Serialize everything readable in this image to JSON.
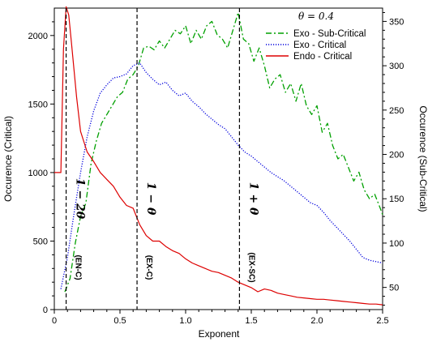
{
  "chart_data": {
    "type": "line",
    "xlabel": "Exponent",
    "ylabel_left": "Occurence (Critical)",
    "ylabel_right": "Occurence (Sub-Critical)",
    "xlim": [
      0,
      2.5
    ],
    "ylim_left": [
      0,
      2200
    ],
    "ylim_right": [
      25,
      365
    ],
    "x_ticks": [
      0,
      0.5,
      1.0,
      1.5,
      2.0,
      2.5
    ],
    "x_tick_labels": [
      "0",
      "0.5",
      "1.0",
      "1.5",
      "2.0",
      "2.5"
    ],
    "y_left_ticks": [
      0,
      500,
      1000,
      1500,
      2000
    ],
    "y_left_tick_labels": [
      "0",
      "500",
      "1000",
      "1500",
      "2000"
    ],
    "y_right_ticks": [
      50,
      100,
      150,
      200,
      250,
      300,
      350
    ],
    "y_right_tick_labels": [
      "50",
      "100",
      "150",
      "200",
      "250",
      "300",
      "350"
    ],
    "legend_title": "θ = 0.4",
    "legend_position": "top-right",
    "grid": false,
    "series": [
      {
        "name": "Exo - Sub-Critical",
        "axis": "right",
        "color": "#00a000",
        "dash": "dashdot",
        "x": [
          0.08,
          0.12,
          0.16,
          0.2,
          0.24,
          0.28,
          0.32,
          0.36,
          0.4,
          0.44,
          0.48,
          0.52,
          0.56,
          0.6,
          0.64,
          0.68,
          0.72,
          0.76,
          0.8,
          0.84,
          0.88,
          0.92,
          0.96,
          1.0,
          1.04,
          1.08,
          1.12,
          1.16,
          1.2,
          1.24,
          1.28,
          1.32,
          1.36,
          1.4,
          1.44,
          1.48,
          1.52,
          1.56,
          1.6,
          1.64,
          1.68,
          1.72,
          1.76,
          1.8,
          1.84,
          1.88,
          1.92,
          1.96,
          2.0,
          2.04,
          2.08,
          2.12,
          2.16,
          2.2,
          2.24,
          2.28,
          2.32,
          2.36,
          2.4,
          2.44,
          2.48,
          2.5
        ],
        "y": [
          45,
          60,
          100,
          130,
          145,
          190,
          215,
          235,
          245,
          255,
          265,
          270,
          285,
          290,
          300,
          320,
          322,
          318,
          328,
          320,
          330,
          340,
          336,
          345,
          325,
          340,
          330,
          345,
          350,
          335,
          330,
          320,
          340,
          360,
          330,
          325,
          305,
          320,
          300,
          275,
          285,
          290,
          270,
          280,
          260,
          280,
          255,
          245,
          255,
          225,
          235,
          210,
          195,
          200,
          185,
          170,
          180,
          160,
          150,
          155,
          140,
          132
        ]
      },
      {
        "name": "Exo - Critical",
        "axis": "left",
        "color": "#0000dd",
        "dash": "dotted",
        "x": [
          0.05,
          0.1,
          0.15,
          0.2,
          0.25,
          0.3,
          0.35,
          0.4,
          0.45,
          0.5,
          0.55,
          0.6,
          0.65,
          0.7,
          0.75,
          0.8,
          0.85,
          0.9,
          0.95,
          1.0,
          1.05,
          1.1,
          1.15,
          1.2,
          1.25,
          1.3,
          1.35,
          1.4,
          1.45,
          1.5,
          1.55,
          1.6,
          1.65,
          1.7,
          1.75,
          1.8,
          1.85,
          1.9,
          1.95,
          2.0,
          2.05,
          2.1,
          2.15,
          2.2,
          2.25,
          2.3,
          2.35,
          2.4,
          2.45,
          2.5
        ],
        "y": [
          150,
          380,
          700,
          1000,
          1260,
          1450,
          1580,
          1640,
          1690,
          1700,
          1720,
          1780,
          1800,
          1730,
          1680,
          1640,
          1660,
          1600,
          1560,
          1580,
          1520,
          1480,
          1430,
          1390,
          1350,
          1320,
          1260,
          1200,
          1150,
          1120,
          1080,
          1040,
          1000,
          970,
          940,
          900,
          860,
          820,
          780,
          760,
          710,
          650,
          600,
          550,
          500,
          440,
          380,
          360,
          350,
          340
        ]
      },
      {
        "name": "Endo - Critical",
        "axis": "left",
        "color": "#dd0000",
        "dash": "solid",
        "x": [
          0.0,
          0.05,
          0.07,
          0.09,
          0.11,
          0.13,
          0.15,
          0.17,
          0.2,
          0.25,
          0.3,
          0.35,
          0.4,
          0.45,
          0.5,
          0.55,
          0.6,
          0.65,
          0.7,
          0.75,
          0.8,
          0.85,
          0.9,
          0.95,
          1.0,
          1.05,
          1.1,
          1.15,
          1.2,
          1.25,
          1.3,
          1.35,
          1.4,
          1.45,
          1.5,
          1.55,
          1.6,
          1.65,
          1.7,
          1.75,
          1.8,
          1.85,
          1.9,
          1.95,
          2.0,
          2.05,
          2.1,
          2.15,
          2.2,
          2.25,
          2.3,
          2.35,
          2.4,
          2.45,
          2.5
        ],
        "y": [
          1000,
          1000,
          1900,
          2210,
          2150,
          1950,
          1750,
          1550,
          1300,
          1150,
          1080,
          1000,
          950,
          900,
          820,
          760,
          740,
          620,
          540,
          500,
          500,
          460,
          430,
          410,
          370,
          340,
          320,
          300,
          280,
          270,
          250,
          230,
          200,
          180,
          160,
          130,
          150,
          140,
          120,
          110,
          100,
          90,
          85,
          80,
          75,
          75,
          70,
          65,
          60,
          55,
          50,
          45,
          40,
          40,
          35
        ]
      }
    ],
    "vlines": [
      {
        "x": 0.09,
        "label": "1 − 2θ",
        "tag": "(EN-C)"
      },
      {
        "x": 0.63,
        "label": "1 − θ",
        "tag": "(EX-C)"
      },
      {
        "x": 1.41,
        "label": "1 + θ",
        "tag": "(EX-SC)"
      }
    ]
  }
}
